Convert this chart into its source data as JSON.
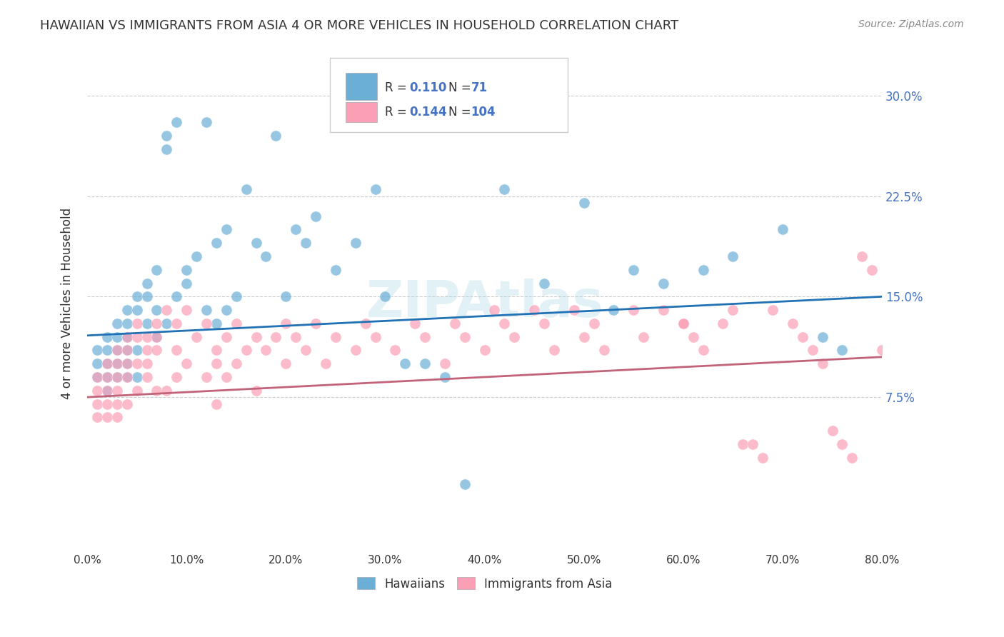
{
  "title": "HAWAIIAN VS IMMIGRANTS FROM ASIA 4 OR MORE VEHICLES IN HOUSEHOLD CORRELATION CHART",
  "source": "Source: ZipAtlas.com",
  "xlabel_ticks": [
    "0.0%",
    "80.0%"
  ],
  "ylabel_label": "4 or more Vehicles in Household",
  "ytick_labels": [
    "7.5%",
    "15.0%",
    "22.5%",
    "30.0%"
  ],
  "ytick_values": [
    0.075,
    0.15,
    0.225,
    0.3
  ],
  "xmin": 0.0,
  "xmax": 0.8,
  "ymin": -0.04,
  "ymax": 0.33,
  "hawaiian_R": "0.110",
  "hawaiian_N": "71",
  "immigrants_R": "0.144",
  "immigrants_N": "104",
  "blue_color": "#6baed6",
  "pink_color": "#fa9fb5",
  "blue_line_color": "#2171b5",
  "pink_line_color": "#c2637a",
  "watermark": "ZIPAtlas",
  "hawaiians_x": [
    0.01,
    0.01,
    0.01,
    0.02,
    0.02,
    0.02,
    0.02,
    0.02,
    0.03,
    0.03,
    0.03,
    0.03,
    0.03,
    0.04,
    0.04,
    0.04,
    0.04,
    0.04,
    0.04,
    0.05,
    0.05,
    0.05,
    0.05,
    0.06,
    0.06,
    0.06,
    0.07,
    0.07,
    0.07,
    0.08,
    0.08,
    0.08,
    0.09,
    0.09,
    0.1,
    0.1,
    0.11,
    0.12,
    0.12,
    0.13,
    0.13,
    0.14,
    0.14,
    0.15,
    0.16,
    0.17,
    0.18,
    0.19,
    0.2,
    0.21,
    0.22,
    0.23,
    0.25,
    0.27,
    0.29,
    0.3,
    0.32,
    0.34,
    0.36,
    0.38,
    0.42,
    0.46,
    0.5,
    0.53,
    0.55,
    0.58,
    0.62,
    0.65,
    0.7,
    0.74,
    0.76
  ],
  "hawaiians_y": [
    0.11,
    0.1,
    0.09,
    0.12,
    0.11,
    0.1,
    0.09,
    0.08,
    0.13,
    0.12,
    0.11,
    0.1,
    0.09,
    0.14,
    0.13,
    0.12,
    0.11,
    0.1,
    0.09,
    0.15,
    0.14,
    0.11,
    0.09,
    0.16,
    0.15,
    0.13,
    0.17,
    0.14,
    0.12,
    0.27,
    0.26,
    0.13,
    0.28,
    0.15,
    0.17,
    0.16,
    0.18,
    0.28,
    0.14,
    0.19,
    0.13,
    0.2,
    0.14,
    0.15,
    0.23,
    0.19,
    0.18,
    0.27,
    0.15,
    0.2,
    0.19,
    0.21,
    0.17,
    0.19,
    0.23,
    0.15,
    0.1,
    0.1,
    0.09,
    0.01,
    0.23,
    0.16,
    0.22,
    0.14,
    0.17,
    0.16,
    0.17,
    0.18,
    0.2,
    0.12,
    0.11
  ],
  "immigrants_x": [
    0.01,
    0.01,
    0.01,
    0.01,
    0.02,
    0.02,
    0.02,
    0.02,
    0.02,
    0.03,
    0.03,
    0.03,
    0.03,
    0.03,
    0.03,
    0.04,
    0.04,
    0.04,
    0.04,
    0.04,
    0.05,
    0.05,
    0.05,
    0.05,
    0.06,
    0.06,
    0.06,
    0.06,
    0.07,
    0.07,
    0.07,
    0.07,
    0.08,
    0.08,
    0.09,
    0.09,
    0.09,
    0.1,
    0.1,
    0.11,
    0.12,
    0.12,
    0.13,
    0.13,
    0.13,
    0.14,
    0.14,
    0.15,
    0.15,
    0.16,
    0.17,
    0.17,
    0.18,
    0.19,
    0.2,
    0.2,
    0.21,
    0.22,
    0.23,
    0.24,
    0.25,
    0.27,
    0.28,
    0.29,
    0.31,
    0.33,
    0.34,
    0.36,
    0.37,
    0.38,
    0.4,
    0.41,
    0.42,
    0.43,
    0.45,
    0.46,
    0.47,
    0.49,
    0.5,
    0.51,
    0.52,
    0.55,
    0.56,
    0.58,
    0.6,
    0.61,
    0.62,
    0.64,
    0.65,
    0.66,
    0.67,
    0.68,
    0.69,
    0.71,
    0.72,
    0.73,
    0.74,
    0.75,
    0.76,
    0.77,
    0.78,
    0.79,
    0.8,
    0.6
  ],
  "immigrants_y": [
    0.09,
    0.08,
    0.07,
    0.06,
    0.1,
    0.09,
    0.08,
    0.07,
    0.06,
    0.11,
    0.1,
    0.09,
    0.08,
    0.07,
    0.06,
    0.12,
    0.11,
    0.1,
    0.09,
    0.07,
    0.13,
    0.12,
    0.1,
    0.08,
    0.12,
    0.11,
    0.1,
    0.09,
    0.13,
    0.12,
    0.11,
    0.08,
    0.14,
    0.08,
    0.13,
    0.11,
    0.09,
    0.14,
    0.1,
    0.12,
    0.13,
    0.09,
    0.11,
    0.1,
    0.07,
    0.12,
    0.09,
    0.13,
    0.1,
    0.11,
    0.12,
    0.08,
    0.11,
    0.12,
    0.13,
    0.1,
    0.12,
    0.11,
    0.13,
    0.1,
    0.12,
    0.11,
    0.13,
    0.12,
    0.11,
    0.13,
    0.12,
    0.1,
    0.13,
    0.12,
    0.11,
    0.14,
    0.13,
    0.12,
    0.14,
    0.13,
    0.11,
    0.14,
    0.12,
    0.13,
    0.11,
    0.14,
    0.12,
    0.14,
    0.13,
    0.12,
    0.11,
    0.13,
    0.14,
    0.04,
    0.04,
    0.03,
    0.14,
    0.13,
    0.12,
    0.11,
    0.1,
    0.05,
    0.04,
    0.03,
    0.18,
    0.17,
    0.11,
    0.13
  ]
}
